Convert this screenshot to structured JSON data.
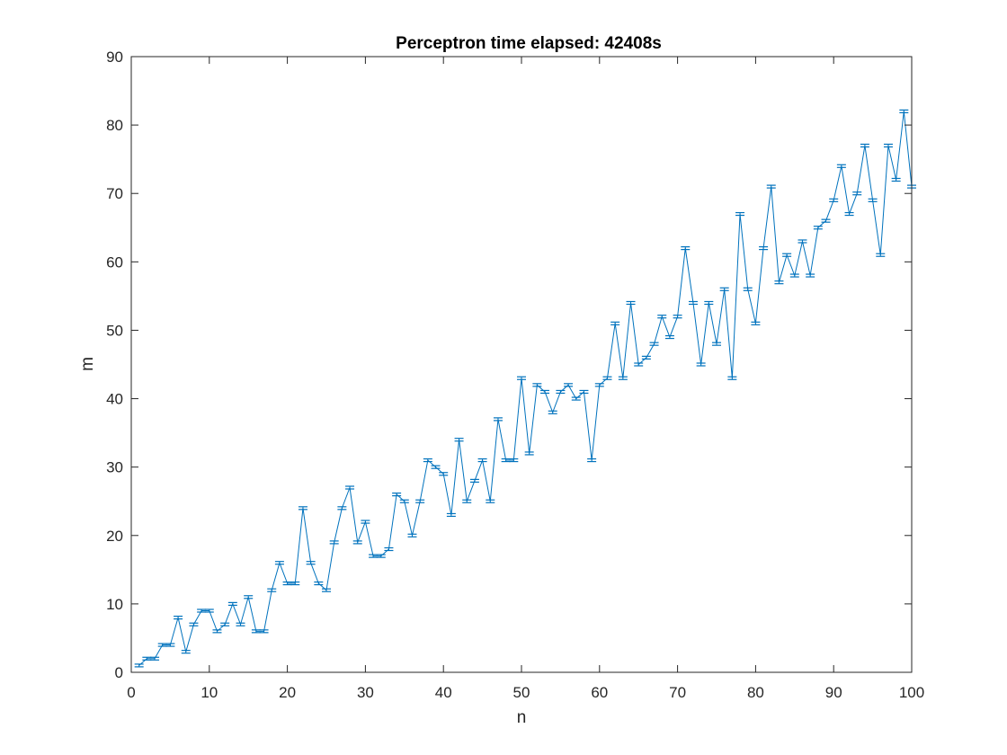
{
  "chart_data": {
    "type": "line",
    "title": "Perceptron time elapsed: 42408s",
    "xlabel": "n",
    "ylabel": "m",
    "xlim": [
      0,
      100
    ],
    "ylim": [
      0,
      90
    ],
    "xticks": [
      0,
      10,
      20,
      30,
      40,
      50,
      60,
      70,
      80,
      90,
      100
    ],
    "yticks": [
      0,
      10,
      20,
      30,
      40,
      50,
      60,
      70,
      80,
      90
    ],
    "grid": false,
    "error_bars": true,
    "color": "#0072BD",
    "series": [
      {
        "x": [
          1,
          2,
          3,
          4,
          5,
          6,
          7,
          8,
          9,
          10,
          11,
          12,
          13,
          14,
          15,
          16,
          17,
          18,
          19,
          20,
          21,
          22,
          23,
          24,
          25,
          26,
          27,
          28,
          29,
          30,
          31,
          32,
          33,
          34,
          35,
          36,
          37,
          38,
          39,
          40,
          41,
          42,
          43,
          44,
          45,
          46,
          47,
          48,
          49,
          50,
          51,
          52,
          53,
          54,
          55,
          56,
          57,
          58,
          59,
          60,
          61,
          62,
          63,
          64,
          65,
          66,
          67,
          68,
          69,
          70,
          71,
          72,
          73,
          74,
          75,
          76,
          77,
          78,
          79,
          80,
          81,
          82,
          83,
          84,
          85,
          86,
          87,
          88,
          89,
          90,
          91,
          92,
          93,
          94,
          95,
          96,
          97,
          98,
          99,
          100
        ],
        "y": [
          1,
          2,
          2,
          4,
          4,
          8,
          3,
          7,
          9,
          9,
          6,
          7,
          10,
          7,
          11,
          6,
          6,
          12,
          16,
          13,
          13,
          24,
          16,
          13,
          12,
          19,
          24,
          27,
          19,
          22,
          17,
          17,
          18,
          26,
          25,
          20,
          25,
          31,
          30,
          29,
          23,
          34,
          25,
          28,
          31,
          25,
          37,
          31,
          31,
          43,
          32,
          42,
          41,
          38,
          41,
          42,
          40,
          41,
          31,
          42,
          43,
          51,
          43,
          54,
          45,
          46,
          48,
          52,
          49,
          52,
          62,
          54,
          45,
          54,
          48,
          56,
          43,
          67,
          56,
          51,
          62,
          71,
          57,
          61,
          58,
          63,
          58,
          65,
          66,
          69,
          74,
          67,
          70,
          77,
          69,
          61,
          77,
          72,
          82,
          71
        ]
      }
    ]
  }
}
